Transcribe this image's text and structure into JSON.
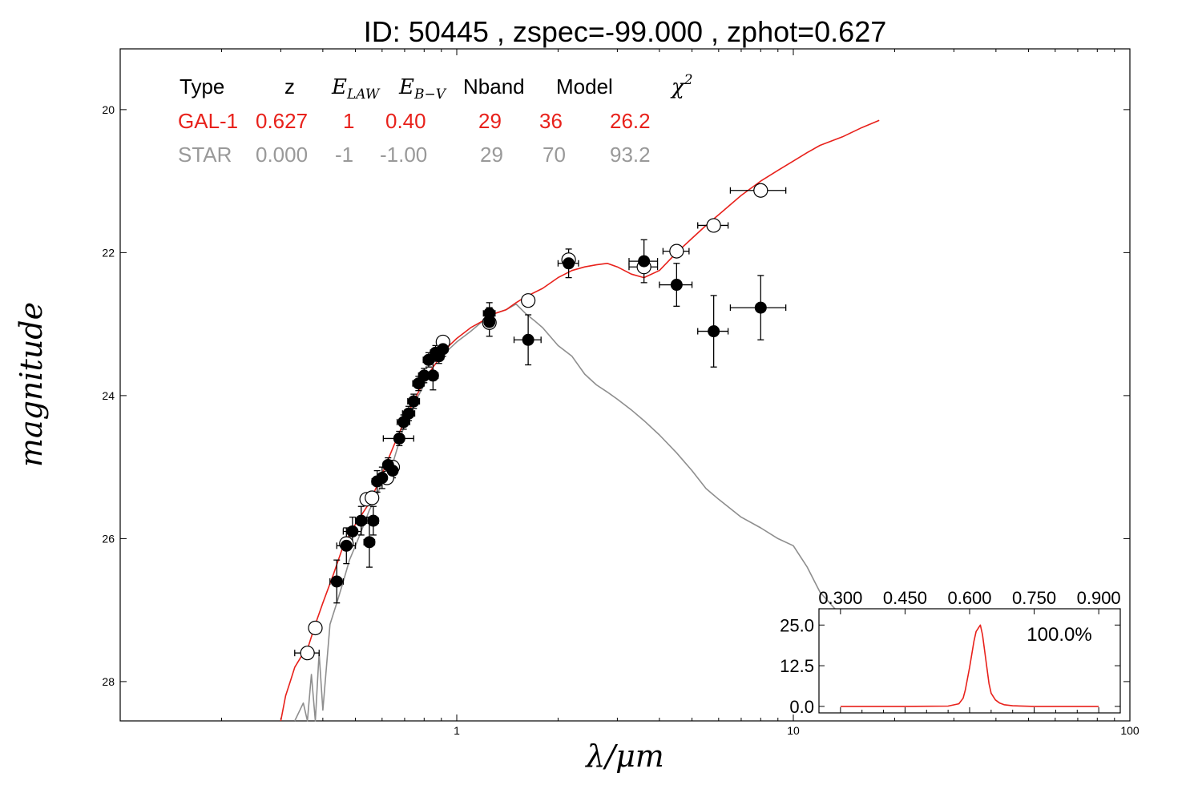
{
  "title": "ID:  50445 , zspec=-99.000 , zphot=0.627",
  "colors": {
    "galaxy": "#e8211b",
    "star": "#8e8e8e",
    "axis": "#000000"
  },
  "table": {
    "headers": [
      "Type",
      "z",
      "E",
      "E",
      "Nband",
      "Model",
      "χ"
    ],
    "header_subscripts": {
      "e_law": "LAW",
      "e_bv": "B−V",
      "chi_sup": "2"
    },
    "rows": [
      {
        "type": "GAL-1",
        "z": "0.627",
        "elaw": "1",
        "ebv": "0.40",
        "nband": "29",
        "model": "36",
        "chi2": "26.2",
        "color": "#e8211b"
      },
      {
        "type": "STAR",
        "z": "0.000",
        "elaw": "-1",
        "ebv": "-1.00",
        "nband": "29",
        "model": "70",
        "chi2": "93.2",
        "color": "#999999"
      }
    ]
  },
  "chart_data": [
    {
      "type": "scatter",
      "title": "ID:  50445 , zspec=-99.000 , zphot=0.627",
      "xlabel": "λ/μm",
      "ylabel": "magnitude",
      "xscale": "log",
      "xlim": [
        0.1,
        100
      ],
      "ylim": [
        28.55,
        19.15
      ],
      "y_inverted": true,
      "x_ticks": [
        1,
        10,
        100
      ],
      "x_tick_labels": [
        "1",
        "10",
        "100"
      ],
      "y_ticks": [
        20,
        22,
        24,
        26,
        28
      ],
      "y_tick_labels": [
        "20",
        "22",
        "24",
        "26",
        "28"
      ],
      "observed_points": [
        {
          "x": 0.44,
          "y": 26.6,
          "ex": 0.02,
          "ey": 0.3
        },
        {
          "x": 0.47,
          "y": 26.1,
          "ex": 0.03,
          "ey": 0.25
        },
        {
          "x": 0.49,
          "y": 25.9,
          "ex": 0.03,
          "ey": 0.2
        },
        {
          "x": 0.52,
          "y": 25.75,
          "ex": 0.02,
          "ey": 0.2
        },
        {
          "x": 0.55,
          "y": 26.05,
          "ex": 0.02,
          "ey": 0.35
        },
        {
          "x": 0.565,
          "y": 25.75,
          "ex": 0.02,
          "ey": 0.2
        },
        {
          "x": 0.58,
          "y": 25.2,
          "ex": 0.02,
          "ey": 0.15
        },
        {
          "x": 0.6,
          "y": 25.15,
          "ex": 0.02,
          "ey": 0.15
        },
        {
          "x": 0.625,
          "y": 24.97,
          "ex": 0.02,
          "ey": 0.1
        },
        {
          "x": 0.645,
          "y": 25.05,
          "ex": 0.02,
          "ey": 0.1
        },
        {
          "x": 0.675,
          "y": 24.6,
          "ex": 0.07,
          "ey": 0.1
        },
        {
          "x": 0.695,
          "y": 24.37,
          "ex": 0.03,
          "ey": 0.1
        },
        {
          "x": 0.72,
          "y": 24.25,
          "ex": 0.03,
          "ey": 0.1
        },
        {
          "x": 0.745,
          "y": 24.08,
          "ex": 0.03,
          "ey": 0.1
        },
        {
          "x": 0.77,
          "y": 23.83,
          "ex": 0.03,
          "ey": 0.1
        },
        {
          "x": 0.8,
          "y": 23.72,
          "ex": 0.03,
          "ey": 0.1
        },
        {
          "x": 0.825,
          "y": 23.5,
          "ex": 0.03,
          "ey": 0.1
        },
        {
          "x": 0.85,
          "y": 23.72,
          "ex": 0.03,
          "ey": 0.2
        },
        {
          "x": 0.865,
          "y": 23.4,
          "ex": 0.03,
          "ey": 0.1
        },
        {
          "x": 0.885,
          "y": 23.45,
          "ex": 0.03,
          "ey": 0.1
        },
        {
          "x": 0.91,
          "y": 23.35,
          "ex": 0.03,
          "ey": 0.1
        },
        {
          "x": 1.25,
          "y": 22.85,
          "ex": 0.05,
          "ey": 0.15
        },
        {
          "x": 1.25,
          "y": 22.97,
          "ex": 0.05,
          "ey": 0.2
        },
        {
          "x": 1.63,
          "y": 23.22,
          "ex": 0.15,
          "ey": 0.35
        },
        {
          "x": 2.15,
          "y": 22.15,
          "ex": 0.15,
          "ey": 0.2
        },
        {
          "x": 3.6,
          "y": 22.12,
          "ex": 0.35,
          "ey": 0.3
        },
        {
          "x": 4.5,
          "y": 22.45,
          "ex": 0.5,
          "ey": 0.3
        },
        {
          "x": 5.8,
          "y": 23.1,
          "ex": 0.6,
          "ey": 0.5
        },
        {
          "x": 8.0,
          "y": 22.77,
          "ex": 1.5,
          "ey": 0.45
        }
      ],
      "model_points": [
        {
          "x": 0.36,
          "y": 27.6,
          "ex": 0.03
        },
        {
          "x": 0.38,
          "y": 27.25,
          "ex": 0.0
        },
        {
          "x": 0.47,
          "y": 26.07,
          "ex": 0.0
        },
        {
          "x": 0.54,
          "y": 25.45,
          "ex": 0.0
        },
        {
          "x": 0.56,
          "y": 25.43,
          "ex": 0.0
        },
        {
          "x": 0.62,
          "y": 25.15,
          "ex": 0.0
        },
        {
          "x": 0.645,
          "y": 25.0,
          "ex": 0.0
        },
        {
          "x": 0.91,
          "y": 23.25,
          "ex": 0.0
        },
        {
          "x": 1.25,
          "y": 22.98,
          "ex": 0.0
        },
        {
          "x": 1.63,
          "y": 22.67,
          "ex": 0.0
        },
        {
          "x": 2.15,
          "y": 22.1,
          "ex": 0.0
        },
        {
          "x": 3.6,
          "y": 22.2,
          "ex": 0.35
        },
        {
          "x": 4.5,
          "y": 21.98,
          "ex": 0.4
        },
        {
          "x": 5.8,
          "y": 21.62,
          "ex": 0.6
        },
        {
          "x": 8.0,
          "y": 21.13,
          "ex": 1.5
        }
      ],
      "series": [
        {
          "name": "GAL-1",
          "type": "line",
          "x": [
            0.3,
            0.31,
            0.32,
            0.33,
            0.345,
            0.36,
            0.38,
            0.4,
            0.43,
            0.46,
            0.5,
            0.55,
            0.6,
            0.65,
            0.7,
            0.75,
            0.8,
            0.85,
            0.9,
            0.95,
            1.0,
            1.1,
            1.2,
            1.3,
            1.4,
            1.5,
            1.6,
            1.8,
            2.0,
            2.2,
            2.4,
            2.6,
            2.8,
            3.0,
            3.3,
            3.6,
            4.0,
            4.5,
            5.0,
            5.5,
            6.0,
            7.0,
            8.0,
            9.0,
            10.0,
            11.0,
            12.0,
            14.0,
            16.0,
            18.0
          ],
          "y": [
            28.7,
            28.2,
            28.0,
            27.8,
            27.65,
            27.55,
            27.2,
            26.9,
            26.5,
            26.1,
            25.8,
            25.5,
            25.1,
            24.7,
            24.35,
            24.05,
            23.8,
            23.6,
            23.45,
            23.3,
            23.2,
            23.05,
            22.95,
            22.85,
            22.8,
            22.7,
            22.62,
            22.5,
            22.35,
            22.25,
            22.2,
            22.17,
            22.15,
            22.2,
            22.3,
            22.35,
            22.25,
            22.0,
            21.8,
            21.62,
            21.47,
            21.2,
            21.0,
            20.85,
            20.72,
            20.6,
            20.5,
            20.38,
            20.25,
            20.15
          ]
        },
        {
          "name": "STAR",
          "type": "line",
          "x": [
            0.33,
            0.35,
            0.36,
            0.37,
            0.38,
            0.39,
            0.4,
            0.42,
            0.44,
            0.46,
            0.48,
            0.5,
            0.52,
            0.55,
            0.58,
            0.6,
            0.62,
            0.65,
            0.7,
            0.75,
            0.8,
            0.85,
            0.9,
            1.0,
            1.1,
            1.2,
            1.3,
            1.4,
            1.5,
            1.6,
            1.7,
            1.8,
            2.0,
            2.2,
            2.4,
            2.6,
            2.8,
            3.0,
            3.3,
            3.6,
            4.0,
            4.5,
            5.0,
            5.5,
            6.0,
            7.0,
            8.0,
            9.0,
            10.0,
            11.0,
            12.0,
            14.0,
            16.0
          ],
          "y": [
            29.5,
            28.3,
            28.9,
            27.9,
            28.6,
            27.6,
            28.4,
            27.2,
            26.9,
            26.6,
            26.3,
            26.1,
            25.9,
            25.6,
            25.4,
            25.2,
            25.1,
            24.9,
            24.4,
            24.1,
            23.85,
            23.6,
            23.45,
            23.25,
            23.1,
            22.95,
            22.85,
            22.8,
            22.72,
            22.85,
            22.95,
            23.05,
            23.3,
            23.45,
            23.7,
            23.85,
            23.95,
            24.05,
            24.2,
            24.35,
            24.55,
            24.8,
            25.05,
            25.3,
            25.45,
            25.7,
            25.85,
            26.0,
            26.1,
            26.4,
            26.75,
            27.1,
            27.45
          ]
        }
      ]
    },
    {
      "type": "line",
      "title": "",
      "xlabel": "",
      "ylabel": "",
      "annotation": "100.0%",
      "xlim": [
        0.25,
        0.95
      ],
      "ylim": [
        -2.0,
        30.0
      ],
      "x_ticks": [
        0.3,
        0.45,
        0.6,
        0.75,
        0.9
      ],
      "x_tick_labels": [
        "0.300",
        "0.450",
        "0.600",
        "0.750",
        "0.900"
      ],
      "y_ticks": [
        0.0,
        12.5,
        25.0
      ],
      "y_tick_labels": [
        "0.0",
        "12.5",
        "25.0"
      ],
      "series": [
        {
          "name": "PDZ",
          "x": [
            0.3,
            0.45,
            0.55,
            0.575,
            0.585,
            0.59,
            0.6,
            0.61,
            0.615,
            0.62,
            0.625,
            0.63,
            0.635,
            0.64,
            0.645,
            0.65,
            0.66,
            0.67,
            0.68,
            0.7,
            0.75,
            0.9
          ],
          "y": [
            0.0,
            0.0,
            0.1,
            0.8,
            2.5,
            5.0,
            12.0,
            20.0,
            23.0,
            24.0,
            25.0,
            22.0,
            17.0,
            12.0,
            7.0,
            4.0,
            2.0,
            1.0,
            0.5,
            0.2,
            0.0,
            0.0
          ]
        }
      ]
    }
  ]
}
